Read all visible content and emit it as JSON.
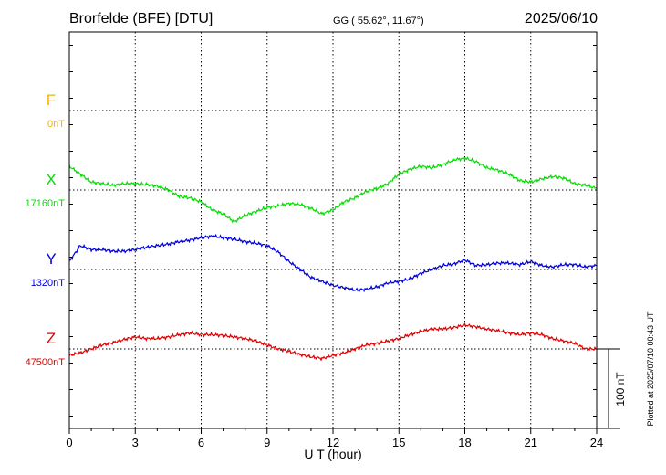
{
  "header": {
    "station": "Brorfelde (BFE)  [DTU]",
    "coords": "GG ( 55.62°,  11.67°)",
    "date": "2025/06/10"
  },
  "footnote": "Plotted at 2025/07/10 00:43 UT",
  "chart_data": {
    "type": "line",
    "xlabel": "U T (hour)",
    "xlim": [
      0,
      24
    ],
    "xticks": [
      "0",
      "3",
      "6",
      "9",
      "12",
      "15",
      "18",
      "21",
      "24"
    ],
    "scale_bar": {
      "label": "100 nT",
      "value_nT": 100
    },
    "series": [
      {
        "name": "F",
        "baseline_label": "0nT",
        "color": "#f0b400",
        "x": [],
        "y": []
      },
      {
        "name": "X",
        "baseline_label": "17160nT",
        "color": "#00e000",
        "x": [
          0,
          0.5,
          1,
          1.5,
          2,
          2.5,
          3,
          3.5,
          4,
          4.5,
          5,
          5.5,
          6,
          6.5,
          7,
          7.5,
          8,
          8.5,
          9,
          9.5,
          10,
          10.5,
          11,
          11.5,
          12,
          12.5,
          13,
          13.5,
          14,
          14.5,
          15,
          15.5,
          16,
          16.5,
          17,
          17.5,
          18,
          18.5,
          19,
          19.5,
          20,
          20.5,
          21,
          21.5,
          22,
          22.5,
          23,
          23.5,
          24
        ],
        "y": [
          17190,
          17180,
          17170,
          17168,
          17166,
          17168,
          17168,
          17167,
          17165,
          17160,
          17152,
          17150,
          17145,
          17135,
          17130,
          17120,
          17128,
          17133,
          17138,
          17140,
          17143,
          17142,
          17137,
          17130,
          17135,
          17145,
          17150,
          17158,
          17162,
          17168,
          17180,
          17186,
          17190,
          17188,
          17192,
          17198,
          17200,
          17196,
          17188,
          17185,
          17180,
          17172,
          17170,
          17174,
          17177,
          17175,
          17168,
          17166,
          17162
        ]
      },
      {
        "name": "Y",
        "baseline_label": "1320nT",
        "color": "#0000e0",
        "x": [
          0,
          0.5,
          1,
          1.5,
          2,
          2.5,
          3,
          3.5,
          4,
          4.5,
          5,
          5.5,
          6,
          6.5,
          7,
          7.5,
          8,
          8.5,
          9,
          9.5,
          10,
          10.5,
          11,
          11.5,
          12,
          12.5,
          13,
          13.5,
          14,
          14.5,
          15,
          15.5,
          16,
          16.5,
          17,
          17.5,
          18,
          18.5,
          19,
          19.5,
          20,
          20.5,
          21,
          21.5,
          22,
          22.5,
          23,
          23.5,
          24
        ],
        "y": [
          1330,
          1350,
          1345,
          1345,
          1343,
          1343,
          1345,
          1348,
          1350,
          1352,
          1355,
          1357,
          1360,
          1362,
          1360,
          1358,
          1355,
          1353,
          1350,
          1342,
          1330,
          1320,
          1310,
          1305,
          1300,
          1297,
          1294,
          1295,
          1298,
          1303,
          1305,
          1308,
          1315,
          1320,
          1325,
          1327,
          1332,
          1325,
          1326,
          1328,
          1328,
          1326,
          1330,
          1325,
          1323,
          1326,
          1326,
          1323,
          1325
        ]
      },
      {
        "name": "Z",
        "baseline_label": "47500nT",
        "color": "#e00000",
        "x": [
          0,
          0.5,
          1,
          1.5,
          2,
          2.5,
          3,
          3.5,
          4,
          4.5,
          5,
          5.5,
          6,
          6.5,
          7,
          7.5,
          8,
          8.5,
          9,
          9.5,
          10,
          10.5,
          11,
          11.5,
          12,
          12.5,
          13,
          13.5,
          14,
          14.5,
          15,
          15.5,
          16,
          16.5,
          17,
          17.5,
          18,
          18.5,
          19,
          19.5,
          20,
          20.5,
          21,
          21.5,
          22,
          22.5,
          23,
          23.5,
          24
        ],
        "y": [
          47492,
          47495,
          47500,
          47505,
          47508,
          47512,
          47515,
          47513,
          47513,
          47515,
          47518,
          47520,
          47518,
          47518,
          47517,
          47515,
          47513,
          47510,
          47505,
          47500,
          47497,
          47493,
          47490,
          47488,
          47492,
          47495,
          47500,
          47505,
          47507,
          47510,
          47513,
          47518,
          47522,
          47525,
          47525,
          47527,
          47530,
          47528,
          47525,
          47523,
          47520,
          47518,
          47520,
          47518,
          47513,
          47510,
          47507,
          47500,
          47500
        ]
      }
    ]
  }
}
